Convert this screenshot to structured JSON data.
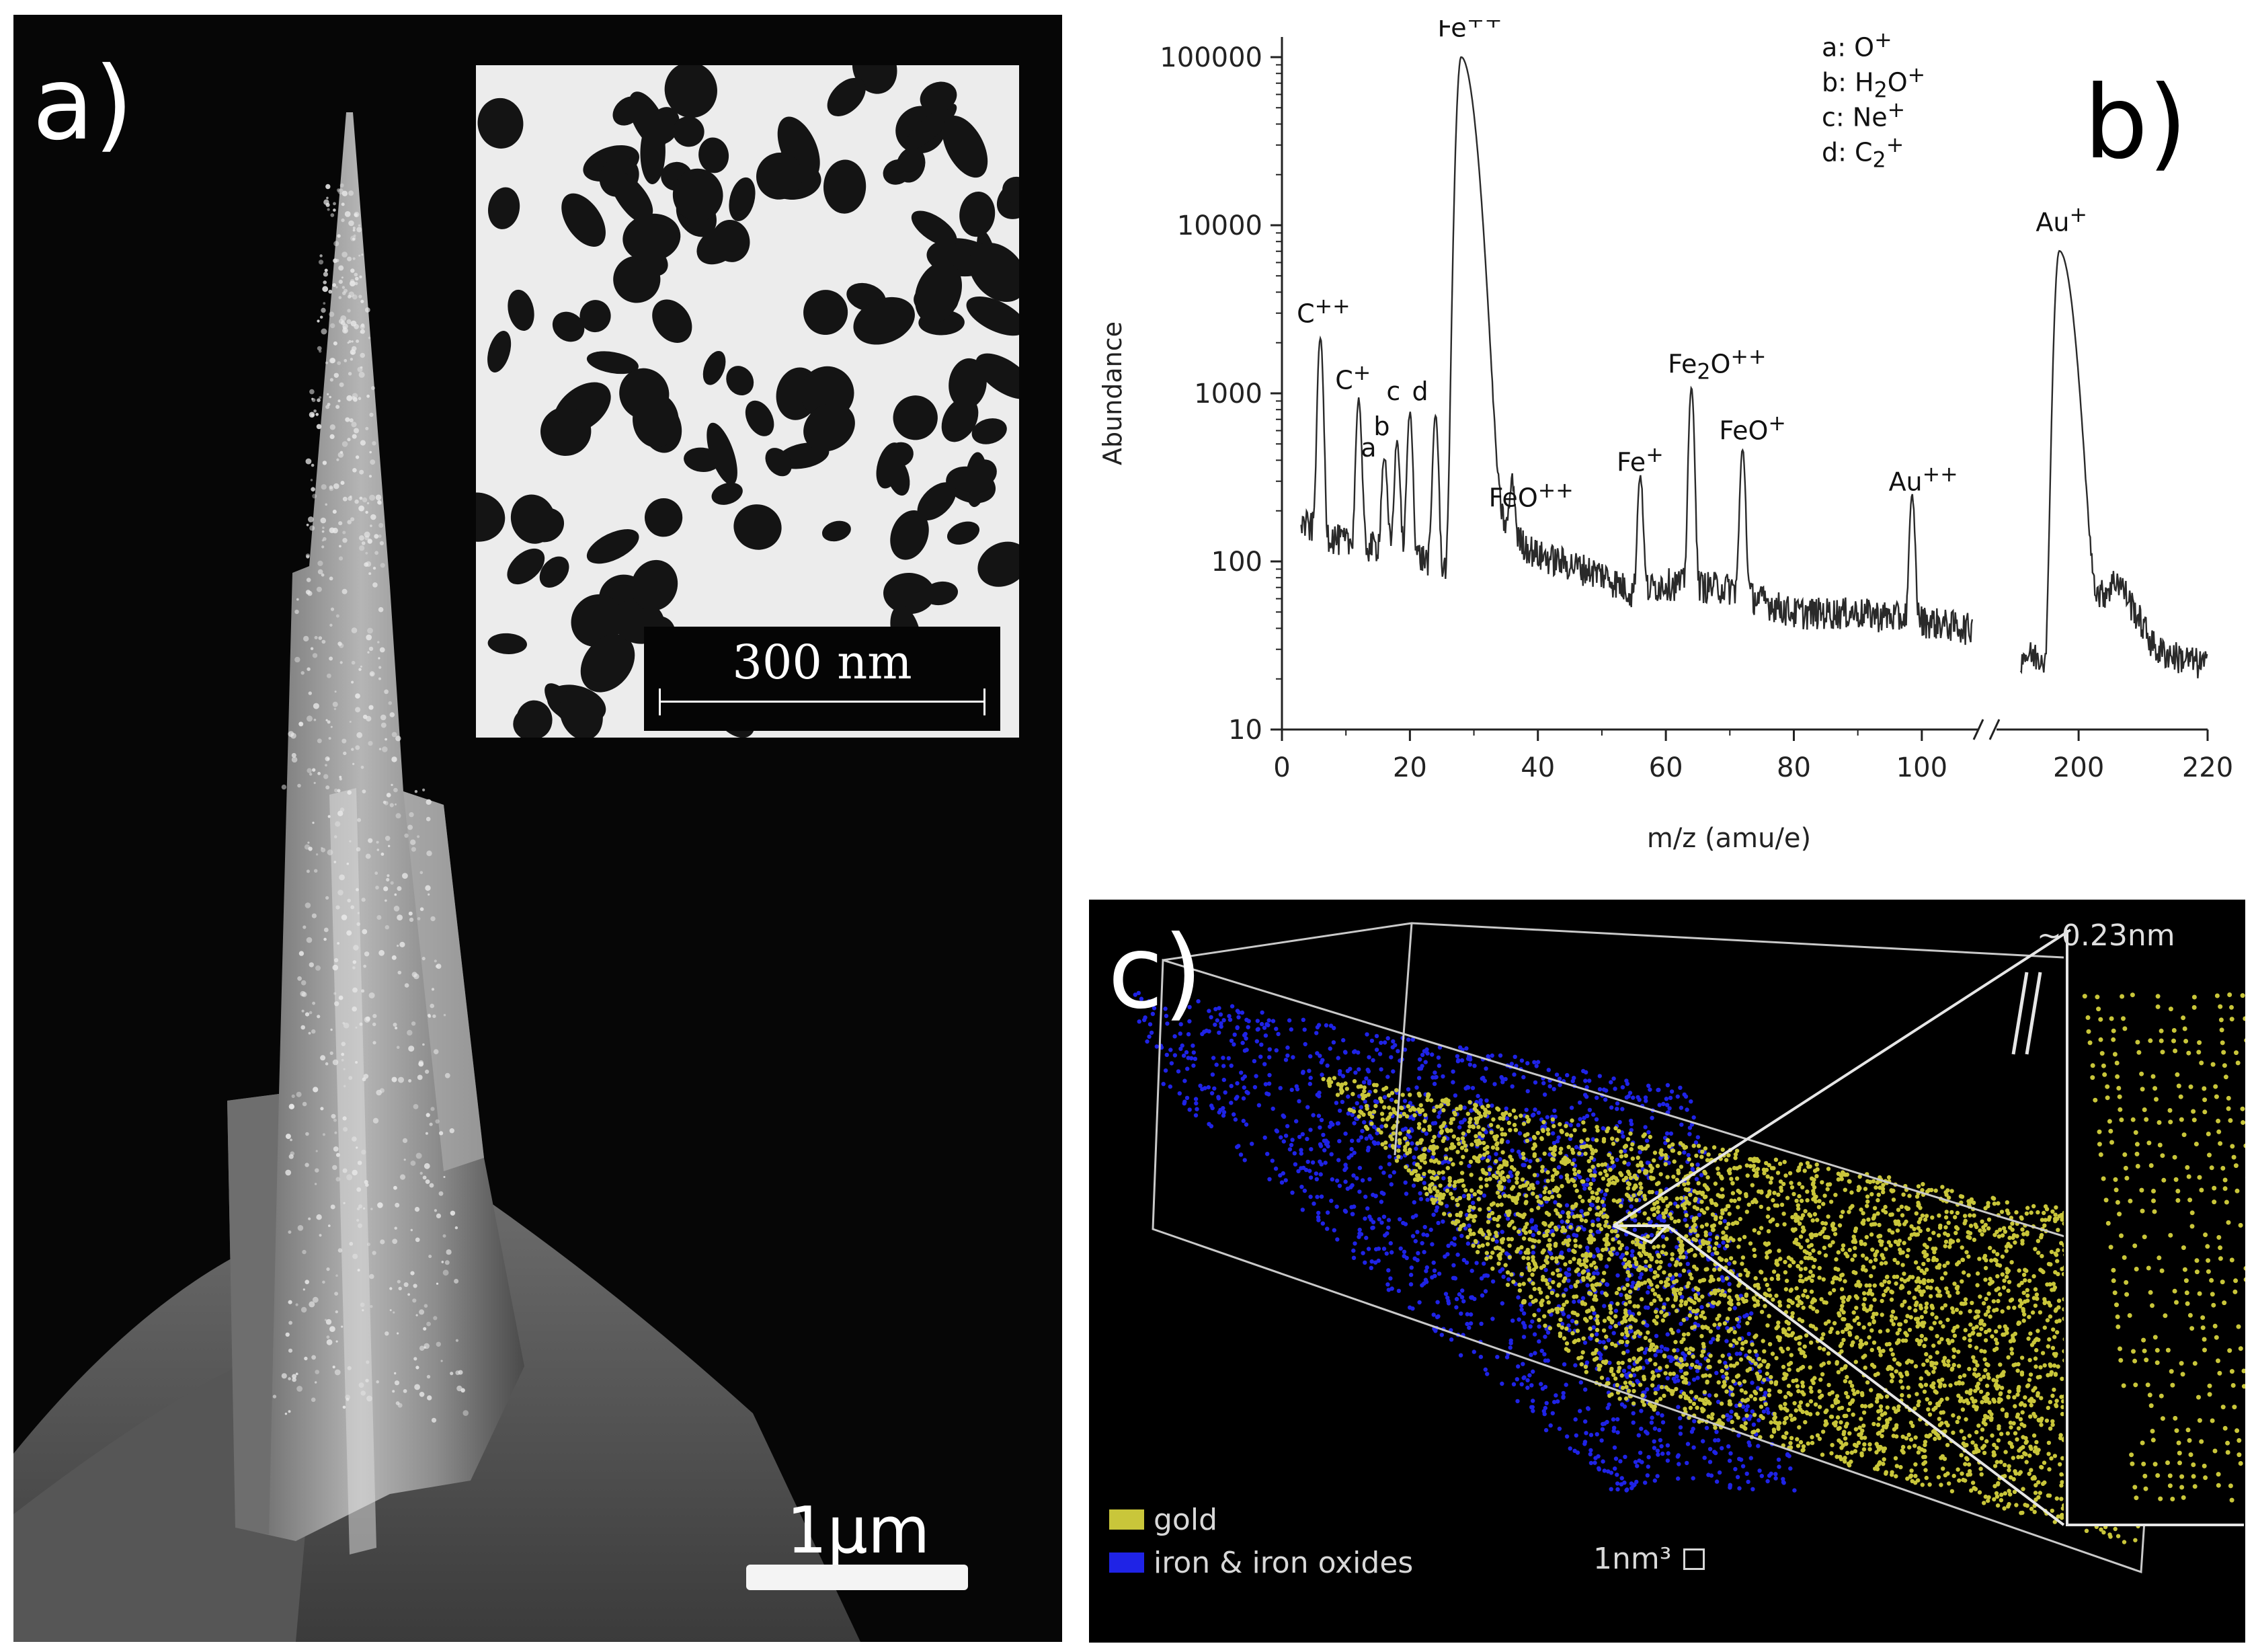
{
  "figure": {
    "panel_a": {
      "label": "a)",
      "inset_scale_label": "300 nm",
      "scale_label": "1µm"
    },
    "panel_b": {
      "label": "b)",
      "chart_data": {
        "type": "line",
        "xlabel": "m/z (amu/e)",
        "ylabel": "Abundance",
        "yscale": "log",
        "ylim": [
          10,
          100000
        ],
        "x_segments": [
          {
            "range": [
              0,
              108
            ],
            "ticks": [
              0,
              20,
              40,
              60,
              80,
              100
            ]
          },
          {
            "range": [
              188,
              220
            ],
            "ticks": [
              200,
              220
            ]
          }
        ],
        "yticks": [
          10,
          100,
          1000,
          10000,
          100000
        ],
        "ytick_labels": [
          "10",
          "100",
          "1000",
          "10000",
          "100000"
        ],
        "axis_break_between": [
          108,
          188
        ],
        "grid": false,
        "legend_position": "top-right",
        "legend": [
          {
            "key": "a:",
            "ion_html": "O<sup>+</sup>"
          },
          {
            "key": "b:",
            "ion_html": "H<sub>2</sub>O<sup>+</sup>"
          },
          {
            "key": "c:",
            "ion_html": "Ne<sup>+</sup>"
          },
          {
            "key": "d:",
            "ion_html": "C<sub>2</sub><sup>+</sup>"
          }
        ],
        "peaks": [
          {
            "x": 6,
            "y": 2000,
            "label_html": "C<sup>++</sup>"
          },
          {
            "x": 12,
            "y": 800,
            "label_html": "C<sup>+</sup>"
          },
          {
            "x": 16,
            "y": 300,
            "label_html": "a"
          },
          {
            "x": 18,
            "y": 400,
            "label_html": "b"
          },
          {
            "x": 20,
            "y": 650,
            "label_html": "c"
          },
          {
            "x": 24,
            "y": 650,
            "label_html": "d"
          },
          {
            "x": 28,
            "y": 100000,
            "label_html": "Fe<sup>++</sup>"
          },
          {
            "x": 36,
            "y": 160,
            "label_html": "FeO<sup>++</sup>"
          },
          {
            "x": 56,
            "y": 260,
            "label_html": "Fe<sup>+</sup>"
          },
          {
            "x": 64,
            "y": 1000,
            "label_html": "Fe<sub>2</sub>O<sup>++</sup>"
          },
          {
            "x": 72,
            "y": 400,
            "label_html": "FeO<sup>+</sup>"
          },
          {
            "x": 98.5,
            "y": 200,
            "label_html": "Au<sup>++</sup>"
          },
          {
            "x": 197,
            "y": 7000,
            "label_html": "Au<sup>+</sup>"
          }
        ],
        "background": [
          {
            "x": 3,
            "y": 170
          },
          {
            "x": 10,
            "y": 130
          },
          {
            "x": 20,
            "y": 115
          },
          {
            "x": 27,
            "y": 85
          },
          {
            "x": 30,
            "y": 220
          },
          {
            "x": 40,
            "y": 110
          },
          {
            "x": 50,
            "y": 85
          },
          {
            "x": 55,
            "y": 65
          },
          {
            "x": 60,
            "y": 75
          },
          {
            "x": 70,
            "y": 70
          },
          {
            "x": 80,
            "y": 50
          },
          {
            "x": 90,
            "y": 50
          },
          {
            "x": 100,
            "y": 45
          },
          {
            "x": 108,
            "y": 40
          },
          {
            "x": 191,
            "y": 28
          },
          {
            "x": 195,
            "y": 27
          },
          {
            "x": 206,
            "y": 80
          },
          {
            "x": 212,
            "y": 30
          },
          {
            "x": 220,
            "y": 24
          }
        ]
      }
    },
    "panel_c": {
      "label": "c)",
      "distance_label": "~0.23nm",
      "legend": [
        {
          "name": "gold",
          "color": "#c9c63a"
        },
        {
          "name": "iron & iron oxides",
          "color": "#1f23e6"
        }
      ],
      "scale_cube_label": "1nm³"
    }
  }
}
